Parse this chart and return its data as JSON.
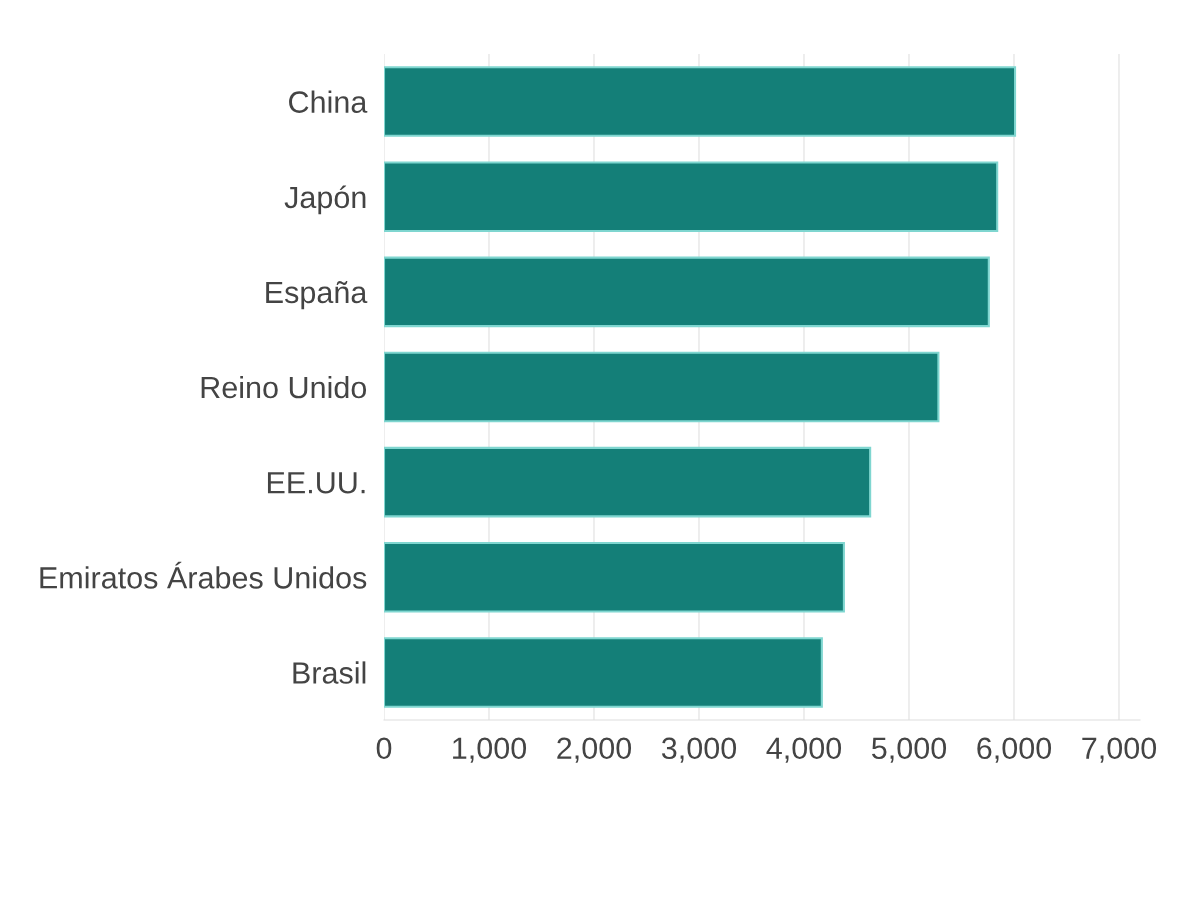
{
  "chart_data": {
    "type": "bar",
    "orientation": "horizontal",
    "categories": [
      "China",
      "Japón",
      "España",
      "Reino Unido",
      "EE.UU.",
      "Emiratos Árabes Unidos",
      "Brasil"
    ],
    "values": [
      6010,
      5840,
      5760,
      5280,
      4630,
      4380,
      4170
    ],
    "color": "#147f78",
    "xlim": [
      0,
      7200
    ],
    "xticks": [
      {
        "value": 0,
        "label": "0"
      },
      {
        "value": 1000,
        "label": "1,000"
      },
      {
        "value": 2000,
        "label": "2,000"
      },
      {
        "value": 3000,
        "label": "3,000"
      },
      {
        "value": 4000,
        "label": "4,000"
      },
      {
        "value": 5000,
        "label": "5,000"
      },
      {
        "value": 6000,
        "label": "6,000"
      },
      {
        "value": 7000,
        "label": "7,000"
      }
    ],
    "grid": "x"
  }
}
